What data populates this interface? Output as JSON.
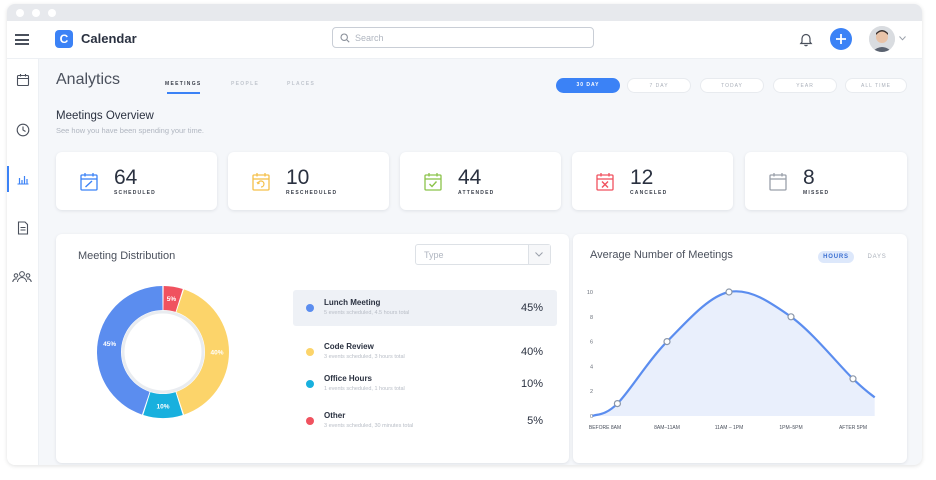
{
  "app": {
    "logo_letter": "C",
    "title": "Calendar"
  },
  "search": {
    "placeholder": "Search"
  },
  "header": {
    "page_title": "Analytics",
    "tabs": [
      "MEETINGS",
      "PEOPLE",
      "PLACES"
    ],
    "active_tab": "MEETINGS"
  },
  "ranges": {
    "items": [
      "30 DAY",
      "7 DAY",
      "TODAY",
      "YEAR",
      "ALL TIME"
    ],
    "active": "30 DAY"
  },
  "overview": {
    "title": "Meetings Overview",
    "subtitle": "See how you have been spending your time."
  },
  "stats": [
    {
      "value": "64",
      "label": "SCHEDULED",
      "color": "#3b82f6",
      "icon": "calendar-edit-icon"
    },
    {
      "value": "10",
      "label": "RESCHEDULED",
      "color": "#f5c04a",
      "icon": "calendar-reschedule-icon"
    },
    {
      "value": "44",
      "label": "ATTENDED",
      "color": "#8bc34a",
      "icon": "calendar-check-icon"
    },
    {
      "value": "12",
      "label": "CANCELED",
      "color": "#f0525f",
      "icon": "calendar-cancel-icon"
    },
    {
      "value": "8",
      "label": "MISSED",
      "color": "#9aa0aa",
      "icon": "calendar-blank-icon"
    }
  ],
  "distribution": {
    "title": "Meeting Distribution",
    "select_placeholder": "Type",
    "items": [
      {
        "name": "Lunch Meeting",
        "sub": "5 events scheduled, 4.5 hours total",
        "pct": "45%",
        "color": "#5b8def"
      },
      {
        "name": "Code Review",
        "sub": "3 events scheduled, 3 hours total",
        "pct": "40%",
        "color": "#fcd46a"
      },
      {
        "name": "Office Hours",
        "sub": "1 events scheduled, 1 hours total",
        "pct": "10%",
        "color": "#18b0de"
      },
      {
        "name": "Other",
        "sub": "3 events scheduled, 30 minutes total",
        "pct": "5%",
        "color": "#f0525f"
      }
    ]
  },
  "chart_data": [
    {
      "type": "pie",
      "categories": [
        "Lunch Meeting",
        "Code Review",
        "Office Hours",
        "Other"
      ],
      "values": [
        45,
        40,
        10,
        5
      ],
      "labels": [
        "45%",
        "40%",
        "10%",
        "5%"
      ],
      "colors": [
        "#5b8def",
        "#fcd46a",
        "#18b0de",
        "#f0525f"
      ],
      "title": "Meeting Distribution"
    },
    {
      "type": "area",
      "title": "Average Number of Meetings",
      "toggle": {
        "options": [
          "HOURS",
          "DAYS"
        ],
        "active": "HOURS"
      },
      "categories": [
        "BEFORE 8AM",
        "8AM–11AM",
        "11AM – 1PM",
        "1PM–5PM",
        "AFTER 5PM"
      ],
      "point_x": [
        0.2,
        1,
        2,
        3,
        4
      ],
      "point_y": [
        1,
        6,
        10,
        8,
        3
      ],
      "x": [
        -0.2,
        0.2,
        1,
        2,
        3,
        4,
        4.35
      ],
      "y": [
        0,
        1,
        6,
        10,
        8,
        3,
        1.5
      ],
      "ylim": [
        0,
        10
      ],
      "yticks": [
        "0",
        "2",
        "4",
        "6",
        "8",
        "10"
      ],
      "grid": false,
      "color": "#5b8def"
    }
  ]
}
